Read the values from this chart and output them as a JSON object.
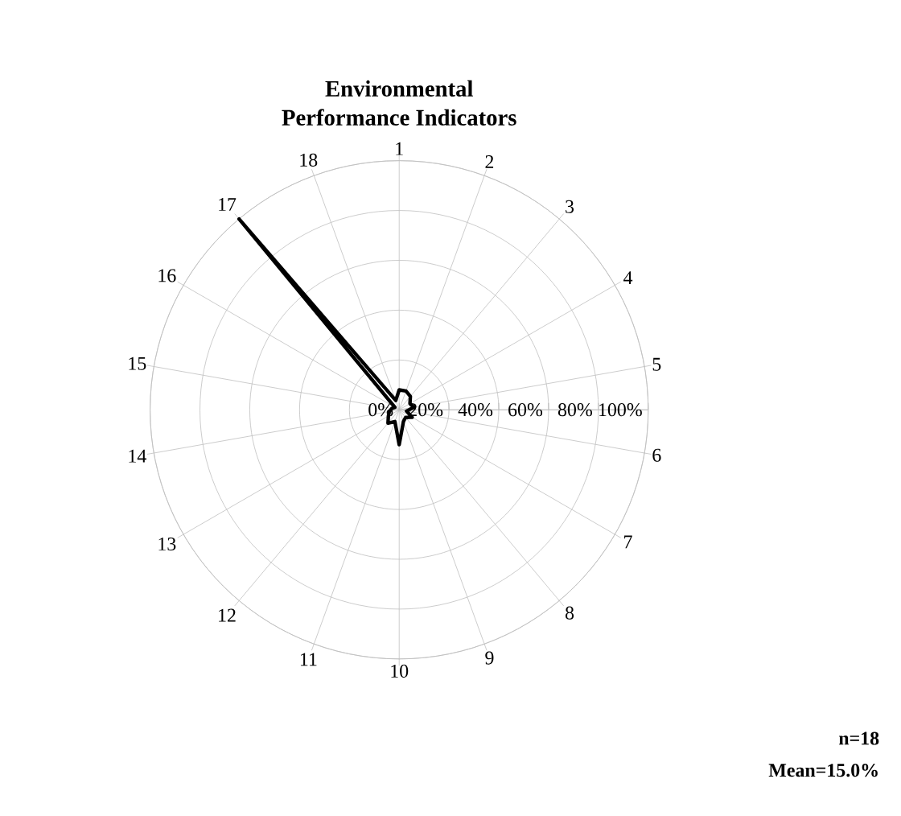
{
  "chart_data": {
    "type": "radar",
    "title": "Environmental Performance Indicators",
    "categories": [
      "1",
      "2",
      "3",
      "4",
      "5",
      "6",
      "7",
      "8",
      "9",
      "10",
      "11",
      "12",
      "13",
      "14",
      "15",
      "16",
      "17",
      "18"
    ],
    "series": [
      {
        "color": "#000000",
        "values": [
          8,
          8,
          7,
          5,
          6,
          3,
          6,
          4,
          5,
          14,
          5,
          7,
          5,
          4,
          3,
          2,
          100,
          4
        ]
      }
    ],
    "ylim": [
      0,
      100
    ],
    "yticks": [
      {
        "value": 0,
        "label": "0%"
      },
      {
        "value": 20,
        "label": "20%"
      },
      {
        "value": 40,
        "label": "40%"
      },
      {
        "value": 60,
        "label": "60%"
      },
      {
        "value": 80,
        "label": "80%"
      },
      {
        "value": 100,
        "label": "100%"
      }
    ],
    "grid": true,
    "marker": "none",
    "line_style": "solid",
    "annotations": [
      "n=18",
      "Mean=15.0%"
    ]
  }
}
